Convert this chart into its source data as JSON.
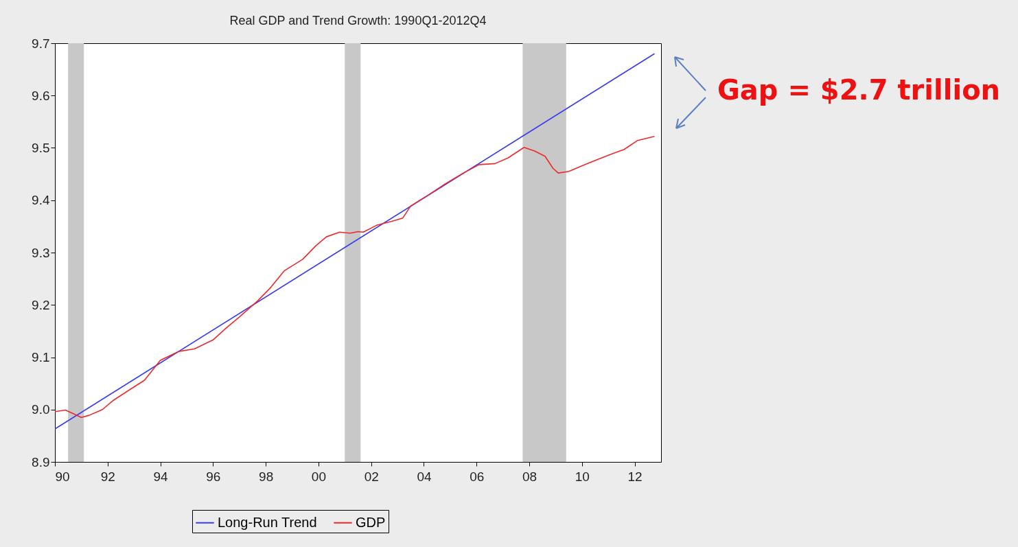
{
  "chart_data": {
    "type": "line",
    "title": "Real GDP and Trend Growth:  1990Q1-2012Q4",
    "x": [
      1990.0,
      1990.4,
      1990.7,
      1991.0,
      1991.3,
      1991.8,
      1992.2,
      1992.9,
      1993.4,
      1994.0,
      1994.7,
      1995.3,
      1996.0,
      1996.5,
      1997.0,
      1997.7,
      1998.2,
      1998.7,
      1999.4,
      1999.9,
      2000.3,
      2000.8,
      2001.2,
      2001.5,
      2001.7,
      2002.2,
      2002.8,
      2003.2,
      2003.5,
      2004.2,
      2004.8,
      2005.5,
      2006.1,
      2006.7,
      2007.2,
      2007.8,
      2008.2,
      2008.6,
      2008.9,
      2009.1,
      2009.5,
      2010.1,
      2010.6,
      2011.1,
      2011.6,
      2012.1,
      2012.75
    ],
    "series": [
      {
        "name": "Long-Run Trend",
        "color": "#3a3af0",
        "x": [
          1990.0,
          2012.75
        ],
        "values": [
          8.963,
          9.68
        ]
      },
      {
        "name": "GDP",
        "color": "#f02828",
        "values": [
          8.996,
          8.999,
          8.992,
          8.985,
          8.989,
          9.0,
          9.017,
          9.04,
          9.056,
          9.094,
          9.111,
          9.116,
          9.133,
          9.156,
          9.177,
          9.208,
          9.234,
          9.265,
          9.287,
          9.313,
          9.33,
          9.339,
          9.337,
          9.34,
          9.339,
          9.352,
          9.36,
          9.366,
          9.389,
          9.411,
          9.431,
          9.452,
          9.468,
          9.47,
          9.481,
          9.501,
          9.494,
          9.484,
          9.461,
          9.452,
          9.455,
          9.468,
          9.478,
          9.488,
          9.497,
          9.514,
          9.522
        ]
      }
    ],
    "xlim": [
      1990,
      2013
    ],
    "xticks": [
      {
        "value": 1990,
        "label": "90"
      },
      {
        "value": 1992,
        "label": "92"
      },
      {
        "value": 1994,
        "label": "94"
      },
      {
        "value": 1996,
        "label": "96"
      },
      {
        "value": 1998,
        "label": "98"
      },
      {
        "value": 2000,
        "label": "00"
      },
      {
        "value": 2002,
        "label": "02"
      },
      {
        "value": 2004,
        "label": "04"
      },
      {
        "value": 2006,
        "label": "06"
      },
      {
        "value": 2008,
        "label": "08"
      },
      {
        "value": 2010,
        "label": "10"
      },
      {
        "value": 2012,
        "label": "12"
      }
    ],
    "ylim": [
      8.9,
      9.7
    ],
    "yticks": [
      8.9,
      {
        "value": 9,
        "label": "9.0"
      },
      9.1,
      9.2,
      9.3,
      9.4,
      9.5,
      9.6,
      9.7
    ],
    "bands": [
      {
        "axis": "x",
        "from": 1990.5,
        "to": 1991.1,
        "color": "#c8c8c8"
      },
      {
        "axis": "x",
        "from": 2001.0,
        "to": 2001.6,
        "color": "#c8c8c8"
      },
      {
        "axis": "x",
        "from": 2007.75,
        "to": 2009.4,
        "color": "#c8c8c8"
      }
    ],
    "annotations": [
      "Gap = $2.7 trillion"
    ],
    "legend": "bottom",
    "grid": false,
    "line_style": "solid",
    "marker": "none"
  }
}
